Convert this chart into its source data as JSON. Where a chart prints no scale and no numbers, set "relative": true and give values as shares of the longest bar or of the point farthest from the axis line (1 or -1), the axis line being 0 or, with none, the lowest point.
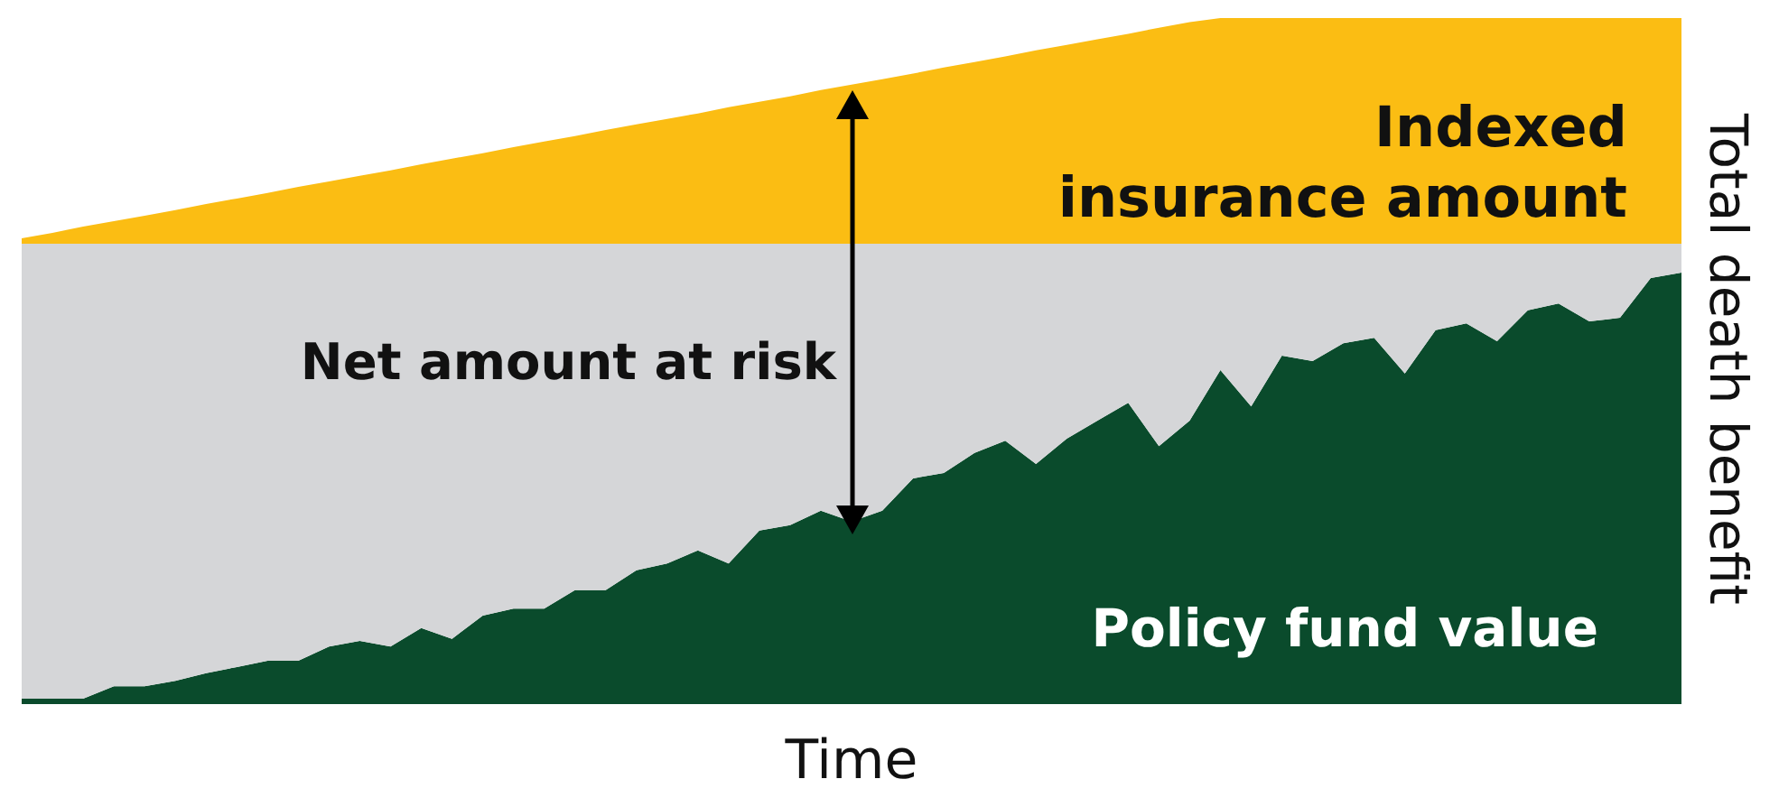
{
  "chart_data": {
    "type": "area",
    "relative": true,
    "stacked": true,
    "xlabel": "Time",
    "ylabel": "Total death benefit",
    "annotations": [
      "Net amount at risk"
    ],
    "categories": [
      null,
      null,
      null,
      null,
      null,
      null,
      null,
      null,
      null,
      null,
      null,
      null,
      null,
      null,
      null,
      null,
      null,
      null,
      null,
      null,
      null,
      null,
      null,
      null,
      null,
      null,
      null,
      null,
      null,
      null,
      null,
      null,
      null,
      null,
      null,
      null,
      null,
      null,
      null,
      null,
      null,
      null,
      null,
      null,
      null,
      null,
      null,
      null,
      null,
      null,
      null,
      null,
      null,
      null,
      null
    ],
    "series": [
      {
        "name": "Policy fund value",
        "color": "#0a4b2c",
        "values": [
          0.008,
          0.008,
          0.008,
          0.026,
          0.026,
          0.034,
          0.045,
          0.054,
          0.063,
          0.063,
          0.084,
          0.092,
          0.084,
          0.111,
          0.095,
          0.129,
          0.139,
          0.139,
          0.166,
          0.166,
          0.195,
          0.205,
          0.224,
          0.205,
          0.253,
          0.261,
          0.282,
          0.266,
          0.282,
          0.329,
          0.337,
          0.366,
          0.384,
          0.35,
          0.387,
          0.413,
          0.439,
          0.376,
          0.413,
          0.487,
          0.434,
          0.508,
          0.5,
          0.526,
          0.534,
          0.482,
          0.545,
          0.555,
          0.529,
          0.574,
          0.584,
          0.558,
          0.563,
          0.621,
          0.629
        ]
      },
      {
        "color": "#d5d6d8",
        "values": [
          0.663,
          0.663,
          0.663,
          0.645,
          0.645,
          0.637,
          0.626,
          0.617,
          0.608,
          0.608,
          0.587,
          0.579,
          0.587,
          0.56,
          0.576,
          0.542,
          0.532,
          0.532,
          0.505,
          0.505,
          0.476,
          0.466,
          0.447,
          0.466,
          0.418,
          0.41,
          0.389,
          0.405,
          0.389,
          0.342,
          0.334,
          0.305,
          0.287,
          0.321,
          0.284,
          0.258,
          0.232,
          0.295,
          0.258,
          0.184,
          0.237,
          0.163,
          0.171,
          0.145,
          0.137,
          0.189,
          0.126,
          0.116,
          0.142,
          0.097,
          0.087,
          0.113,
          0.108,
          0.05,
          0.042
        ]
      },
      {
        "name": "Indexed\ninsurance amount",
        "color": "#fbbd13",
        "values": [
          0.008,
          0.016,
          0.025,
          0.033,
          0.041,
          0.049,
          0.058,
          0.066,
          0.074,
          0.083,
          0.091,
          0.099,
          0.107,
          0.116,
          0.124,
          0.132,
          0.141,
          0.149,
          0.157,
          0.166,
          0.174,
          0.182,
          0.19,
          0.199,
          0.207,
          0.215,
          0.224,
          0.232,
          0.24,
          0.248,
          0.257,
          0.265,
          0.273,
          0.282,
          0.29,
          0.298,
          0.306,
          0.315,
          0.323,
          0.329,
          0.329,
          0.329,
          0.329,
          0.329,
          0.329,
          0.329,
          0.329,
          0.329,
          0.329,
          0.329,
          0.329,
          0.329,
          0.329,
          0.329,
          0.329
        ]
      }
    ]
  }
}
